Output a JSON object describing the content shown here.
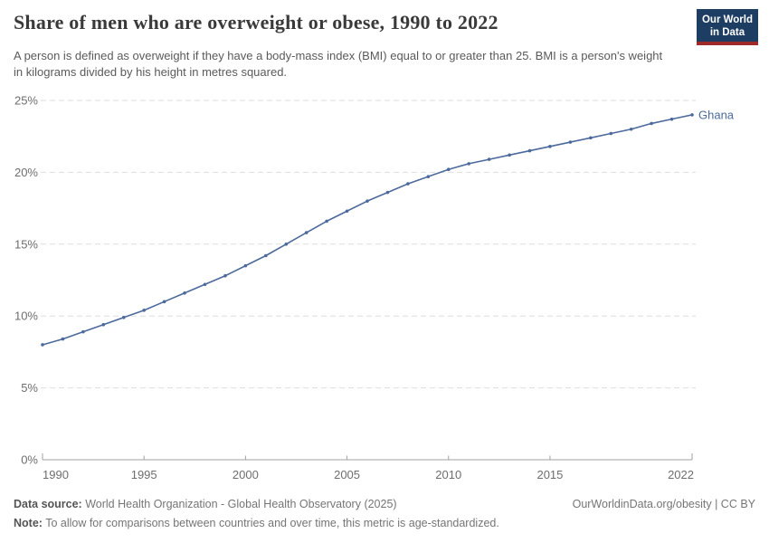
{
  "header": {
    "title": "Share of men who are overweight or obese, 1990 to 2022",
    "subtitle": "A person is defined as overweight if they have a body-mass index (BMI) equal to or greater than 25. BMI is a person's weight in kilograms divided by his height in metres squared.",
    "logo": {
      "line1": "Our World",
      "line2": "in Data",
      "bg_color": "#1d3d63",
      "bar_color": "#9e2a2a"
    }
  },
  "chart_data": {
    "type": "line",
    "title": "Share of men who are overweight or obese, 1990 to 2022",
    "xlabel": "",
    "ylabel": "",
    "xlim": [
      1990,
      2022
    ],
    "ylim": [
      0,
      25
    ],
    "x_ticks": [
      1990,
      1995,
      2000,
      2005,
      2010,
      2015,
      2022
    ],
    "y_ticks": [
      {
        "value": 0,
        "label": "0%"
      },
      {
        "value": 5,
        "label": "5%"
      },
      {
        "value": 10,
        "label": "10%"
      },
      {
        "value": 15,
        "label": "15%"
      },
      {
        "value": 20,
        "label": "20%"
      },
      {
        "value": 25,
        "label": "25%"
      }
    ],
    "grid": "horizontal-dashed",
    "legend_position": "end-of-line",
    "series": [
      {
        "name": "Ghana",
        "color": "#4c6a9c",
        "x": [
          1990,
          1991,
          1992,
          1993,
          1994,
          1995,
          1996,
          1997,
          1998,
          1999,
          2000,
          2001,
          2002,
          2003,
          2004,
          2005,
          2006,
          2007,
          2008,
          2009,
          2010,
          2011,
          2012,
          2013,
          2014,
          2015,
          2016,
          2017,
          2018,
          2019,
          2020,
          2021,
          2022
        ],
        "values": [
          8.0,
          8.4,
          8.9,
          9.4,
          9.9,
          10.4,
          11.0,
          11.6,
          12.2,
          12.8,
          13.5,
          14.2,
          15.0,
          15.8,
          16.6,
          17.3,
          18.0,
          18.6,
          19.2,
          19.7,
          20.2,
          20.6,
          20.9,
          21.2,
          21.5,
          21.8,
          22.1,
          22.4,
          22.7,
          23.0,
          23.4,
          23.7,
          24.0
        ]
      }
    ]
  },
  "footer": {
    "data_source_label": "Data source:",
    "data_source_value": " World Health Organization - Global Health Observatory (2025)",
    "note_label": "Note:",
    "note_value": " To allow for comparisons between countries and over time, this metric is age-standardized.",
    "license_link": "OurWorldinData.org/obesity | CC BY"
  }
}
